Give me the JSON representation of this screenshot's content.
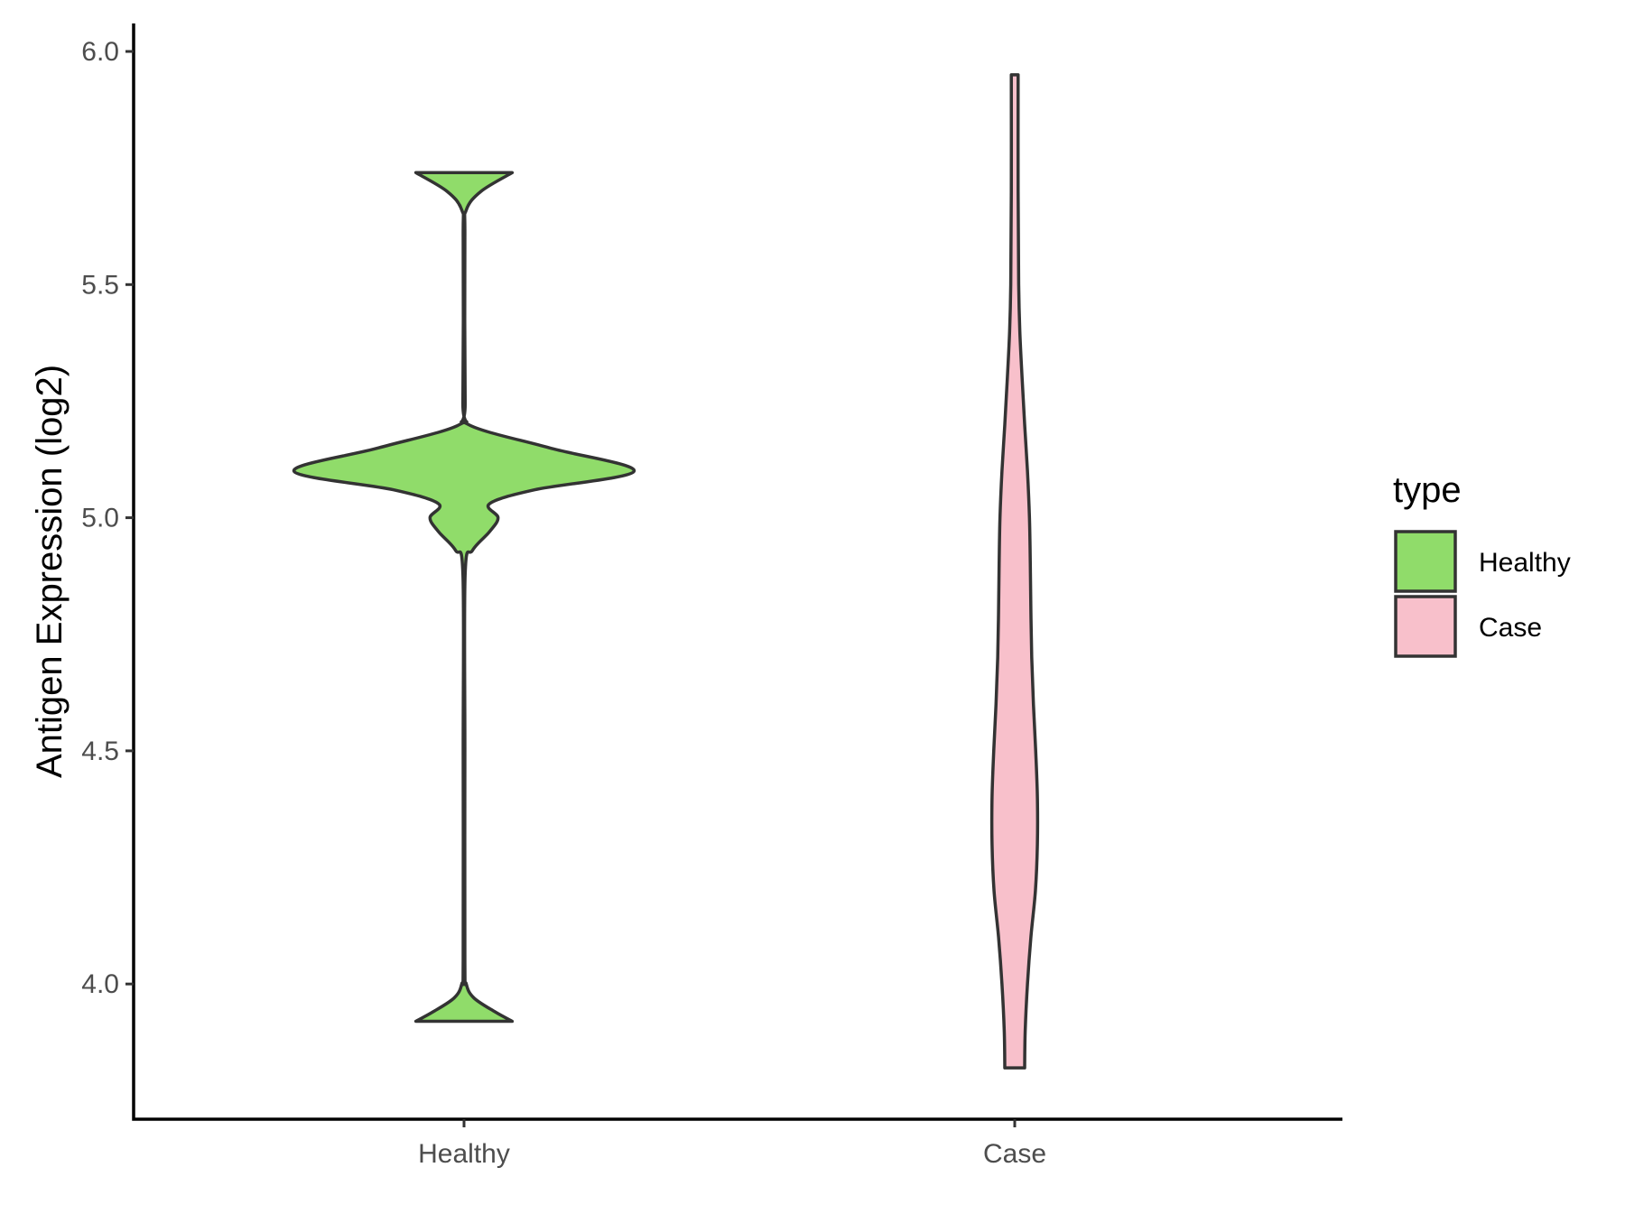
{
  "chart_data": {
    "type": "violin",
    "title": "",
    "xlabel": "",
    "ylabel": "Antigen Expression (log2)",
    "categories": [
      "Healthy",
      "Case"
    ],
    "ylim": [
      3.71,
      6.06
    ],
    "yticks": [
      4.0,
      4.5,
      5.0,
      5.5,
      6.0
    ],
    "ytick_labels": [
      "4.0",
      "4.5",
      "5.0",
      "5.5",
      "6.0"
    ],
    "grid": false,
    "legend": {
      "title": "type",
      "position": "right",
      "entries": [
        {
          "label": "Healthy",
          "color": "#90dc6a"
        },
        {
          "label": "Case",
          "color": "#f8c0cb"
        }
      ]
    },
    "series": [
      {
        "category": "Healthy",
        "color": "#90dc6a",
        "y_range": [
          3.92,
          5.74
        ],
        "density_profile": [
          {
            "y": 3.92,
            "w": 0.17
          },
          {
            "y": 3.94,
            "w": 0.11
          },
          {
            "y": 3.97,
            "w": 0.035
          },
          {
            "y": 4.0,
            "w": 0.008
          },
          {
            "y": 4.05,
            "w": 0.003
          },
          {
            "y": 4.5,
            "w": 0.003
          },
          {
            "y": 4.88,
            "w": 0.004
          },
          {
            "y": 4.93,
            "w": 0.03
          },
          {
            "y": 4.97,
            "w": 0.09
          },
          {
            "y": 5.0,
            "w": 0.12
          },
          {
            "y": 5.03,
            "w": 0.09
          },
          {
            "y": 5.06,
            "w": 0.25
          },
          {
            "y": 5.1,
            "w": 0.6
          },
          {
            "y": 5.15,
            "w": 0.3
          },
          {
            "y": 5.2,
            "w": 0.015
          },
          {
            "y": 5.25,
            "w": 0.004
          },
          {
            "y": 5.6,
            "w": 0.003
          },
          {
            "y": 5.66,
            "w": 0.008
          },
          {
            "y": 5.7,
            "w": 0.06
          },
          {
            "y": 5.74,
            "w": 0.17
          }
        ]
      },
      {
        "category": "Case",
        "color": "#f8c0cb",
        "y_range": [
          3.82,
          5.95
        ],
        "density_profile": [
          {
            "y": 3.82,
            "w": 0.035
          },
          {
            "y": 3.9,
            "w": 0.037
          },
          {
            "y": 4.0,
            "w": 0.045
          },
          {
            "y": 4.1,
            "w": 0.057
          },
          {
            "y": 4.2,
            "w": 0.073
          },
          {
            "y": 4.3,
            "w": 0.08
          },
          {
            "y": 4.4,
            "w": 0.08
          },
          {
            "y": 4.5,
            "w": 0.074
          },
          {
            "y": 4.6,
            "w": 0.066
          },
          {
            "y": 4.7,
            "w": 0.06
          },
          {
            "y": 4.8,
            "w": 0.057
          },
          {
            "y": 4.9,
            "w": 0.055
          },
          {
            "y": 5.0,
            "w": 0.052
          },
          {
            "y": 5.1,
            "w": 0.045
          },
          {
            "y": 5.2,
            "w": 0.035
          },
          {
            "y": 5.3,
            "w": 0.026
          },
          {
            "y": 5.4,
            "w": 0.018
          },
          {
            "y": 5.5,
            "w": 0.014
          },
          {
            "y": 5.7,
            "w": 0.012
          },
          {
            "y": 5.95,
            "w": 0.012
          }
        ]
      }
    ]
  }
}
